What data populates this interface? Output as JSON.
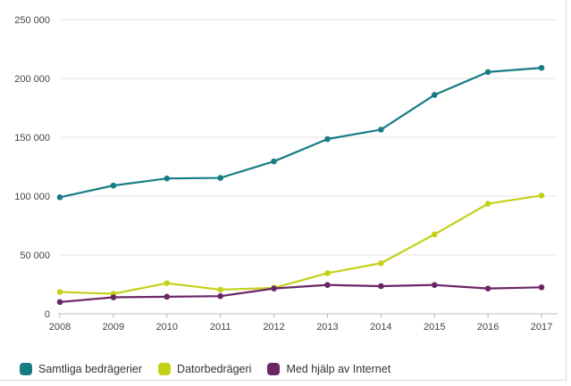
{
  "chart_data": {
    "type": "line",
    "title": "",
    "xlabel": "",
    "ylabel": "",
    "x": [
      "2008",
      "2009",
      "2010",
      "2011",
      "2012",
      "2013",
      "2014",
      "2015",
      "2016",
      "2017"
    ],
    "ylim": [
      0,
      250000
    ],
    "y_ticks": [
      0,
      50000,
      100000,
      150000,
      200000,
      250000
    ],
    "y_tick_labels": [
      "0",
      "50 000",
      "100 000",
      "150 000",
      "200 000",
      "250 000"
    ],
    "grid": true,
    "legend_position": "bottom-left",
    "series": [
      {
        "name": "Samtliga bedrägerier",
        "color": "#177d83",
        "values": [
          99000,
          109000,
          115000,
          115500,
          129500,
          148500,
          156500,
          186000,
          205500,
          209000
        ]
      },
      {
        "name": "Datorbedrägeri",
        "color": "#c4d117",
        "values": [
          18500,
          17000,
          26000,
          20500,
          22000,
          34500,
          43000,
          67500,
          93500,
          100500
        ]
      },
      {
        "name": "Med hjälp av Internet",
        "color": "#6b2667",
        "values": [
          10000,
          14000,
          14500,
          15000,
          21500,
          24500,
          23500,
          24500,
          21500,
          22500
        ]
      }
    ]
  }
}
